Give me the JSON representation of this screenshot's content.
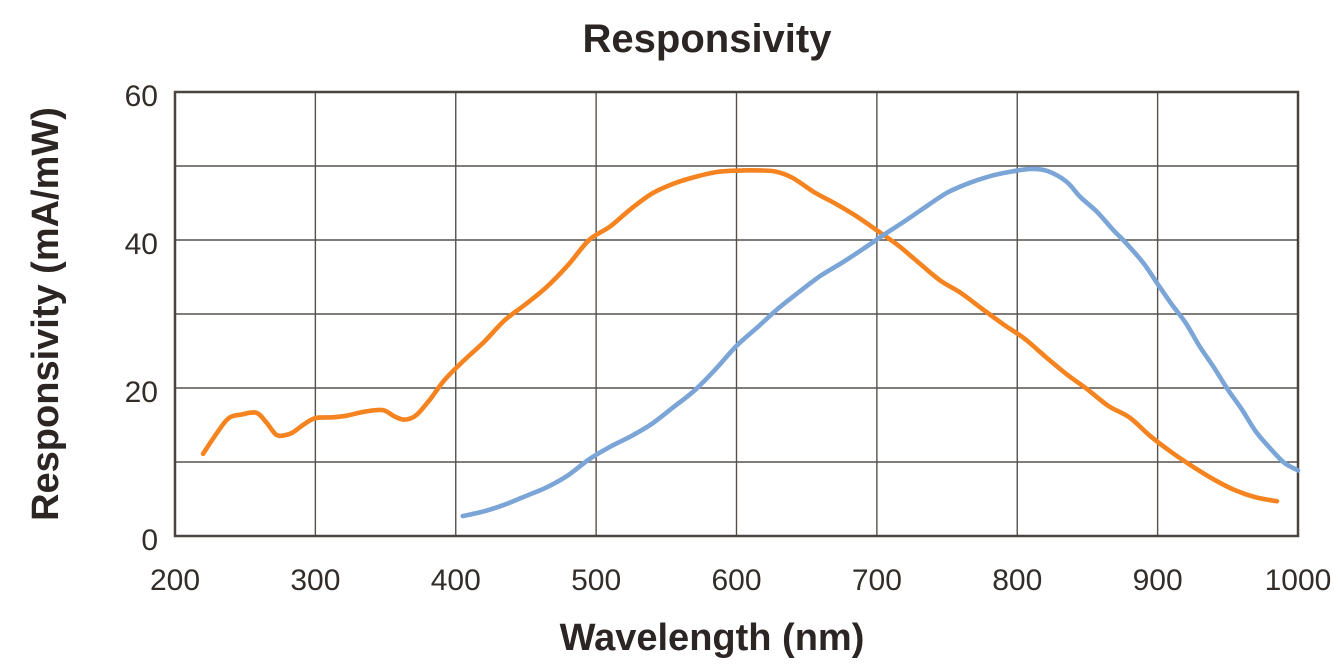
{
  "chart_data": {
    "type": "line",
    "title": "Responsivity",
    "xlabel": "Wavelength (nm)",
    "ylabel": "Responsivity (mA/mW)",
    "x_range": [
      200,
      1000
    ],
    "y_range": [
      0,
      60
    ],
    "x_grid_step": 100,
    "y_grid_step": 10,
    "x_ticks": [
      200,
      300,
      400,
      500,
      600,
      700,
      800,
      900,
      1000
    ],
    "y_ticks": [
      0,
      20,
      40,
      60
    ],
    "grid": true,
    "legend_position": "none",
    "colors": {
      "orange_series": "#F5831F",
      "blue_series": "#7BA5D6",
      "gridline": "#56504d",
      "plot_border": "#4a4440",
      "text": "#2b2523"
    },
    "series": [
      {
        "name": "orange",
        "color": "#F5831F",
        "x": [
          220,
          228,
          238,
          248,
          258,
          265,
          272,
          278,
          284,
          292,
          300,
          312,
          322,
          335,
          348,
          357,
          364,
          372,
          382,
          392,
          405,
          420,
          435,
          450,
          465,
          480,
          495,
          510,
          525,
          540,
          555,
          570,
          585,
          600,
          615,
          628,
          640,
          655,
          670,
          685,
          700,
          715,
          730,
          745,
          760,
          775,
          790,
          805,
          820,
          835,
          850,
          865,
          880,
          895,
          910,
          925,
          940,
          955,
          970,
          985
        ],
        "y": [
          11,
          13.5,
          15.8,
          16.5,
          16.6,
          15.3,
          13.8,
          13.6,
          13.9,
          15.2,
          15.9,
          16.1,
          16.2,
          16.9,
          16.9,
          16.2,
          15.7,
          16.3,
          18.6,
          21,
          23.6,
          26.3,
          29.1,
          31.3,
          33.8,
          36.6,
          39.9,
          41.9,
          44.3,
          46.2,
          47.6,
          48.6,
          49.1,
          49.3,
          49.5,
          49.2,
          48.4,
          46.6,
          44.9,
          43.2,
          41.4,
          39.3,
          36.8,
          34.6,
          32.9,
          30.6,
          28.6,
          26.8,
          24.2,
          21.8,
          19.9,
          17.6,
          15.9,
          13.5,
          11.4,
          9.3,
          7.6,
          6.3,
          5.2,
          4.6
        ]
      },
      {
        "name": "blue",
        "color": "#7BA5D6",
        "x": [
          405,
          420,
          435,
          450,
          465,
          480,
          495,
          510,
          525,
          540,
          555,
          570,
          585,
          600,
          615,
          630,
          645,
          660,
          675,
          690,
          705,
          720,
          735,
          750,
          765,
          780,
          795,
          810,
          822,
          835,
          845,
          857,
          868,
          878,
          890,
          900,
          910,
          920,
          930,
          940,
          950,
          960,
          970,
          980,
          990,
          1000
        ],
        "y": [
          2.6,
          3.4,
          4.3,
          5.3,
          6.6,
          8.3,
          10.3,
          12,
          13.6,
          15.2,
          17.3,
          19.7,
          22.6,
          25.6,
          28.2,
          30.9,
          33,
          35.1,
          37,
          38.8,
          40.6,
          42.6,
          44.6,
          46.3,
          47.6,
          48.7,
          49.2,
          49.5,
          49.4,
          47.8,
          45.9,
          43.7,
          41.5,
          39.4,
          36.9,
          34,
          31.4,
          28.7,
          25.7,
          22.7,
          19.9,
          17,
          14.2,
          11.8,
          10,
          8.8
        ]
      }
    ]
  }
}
